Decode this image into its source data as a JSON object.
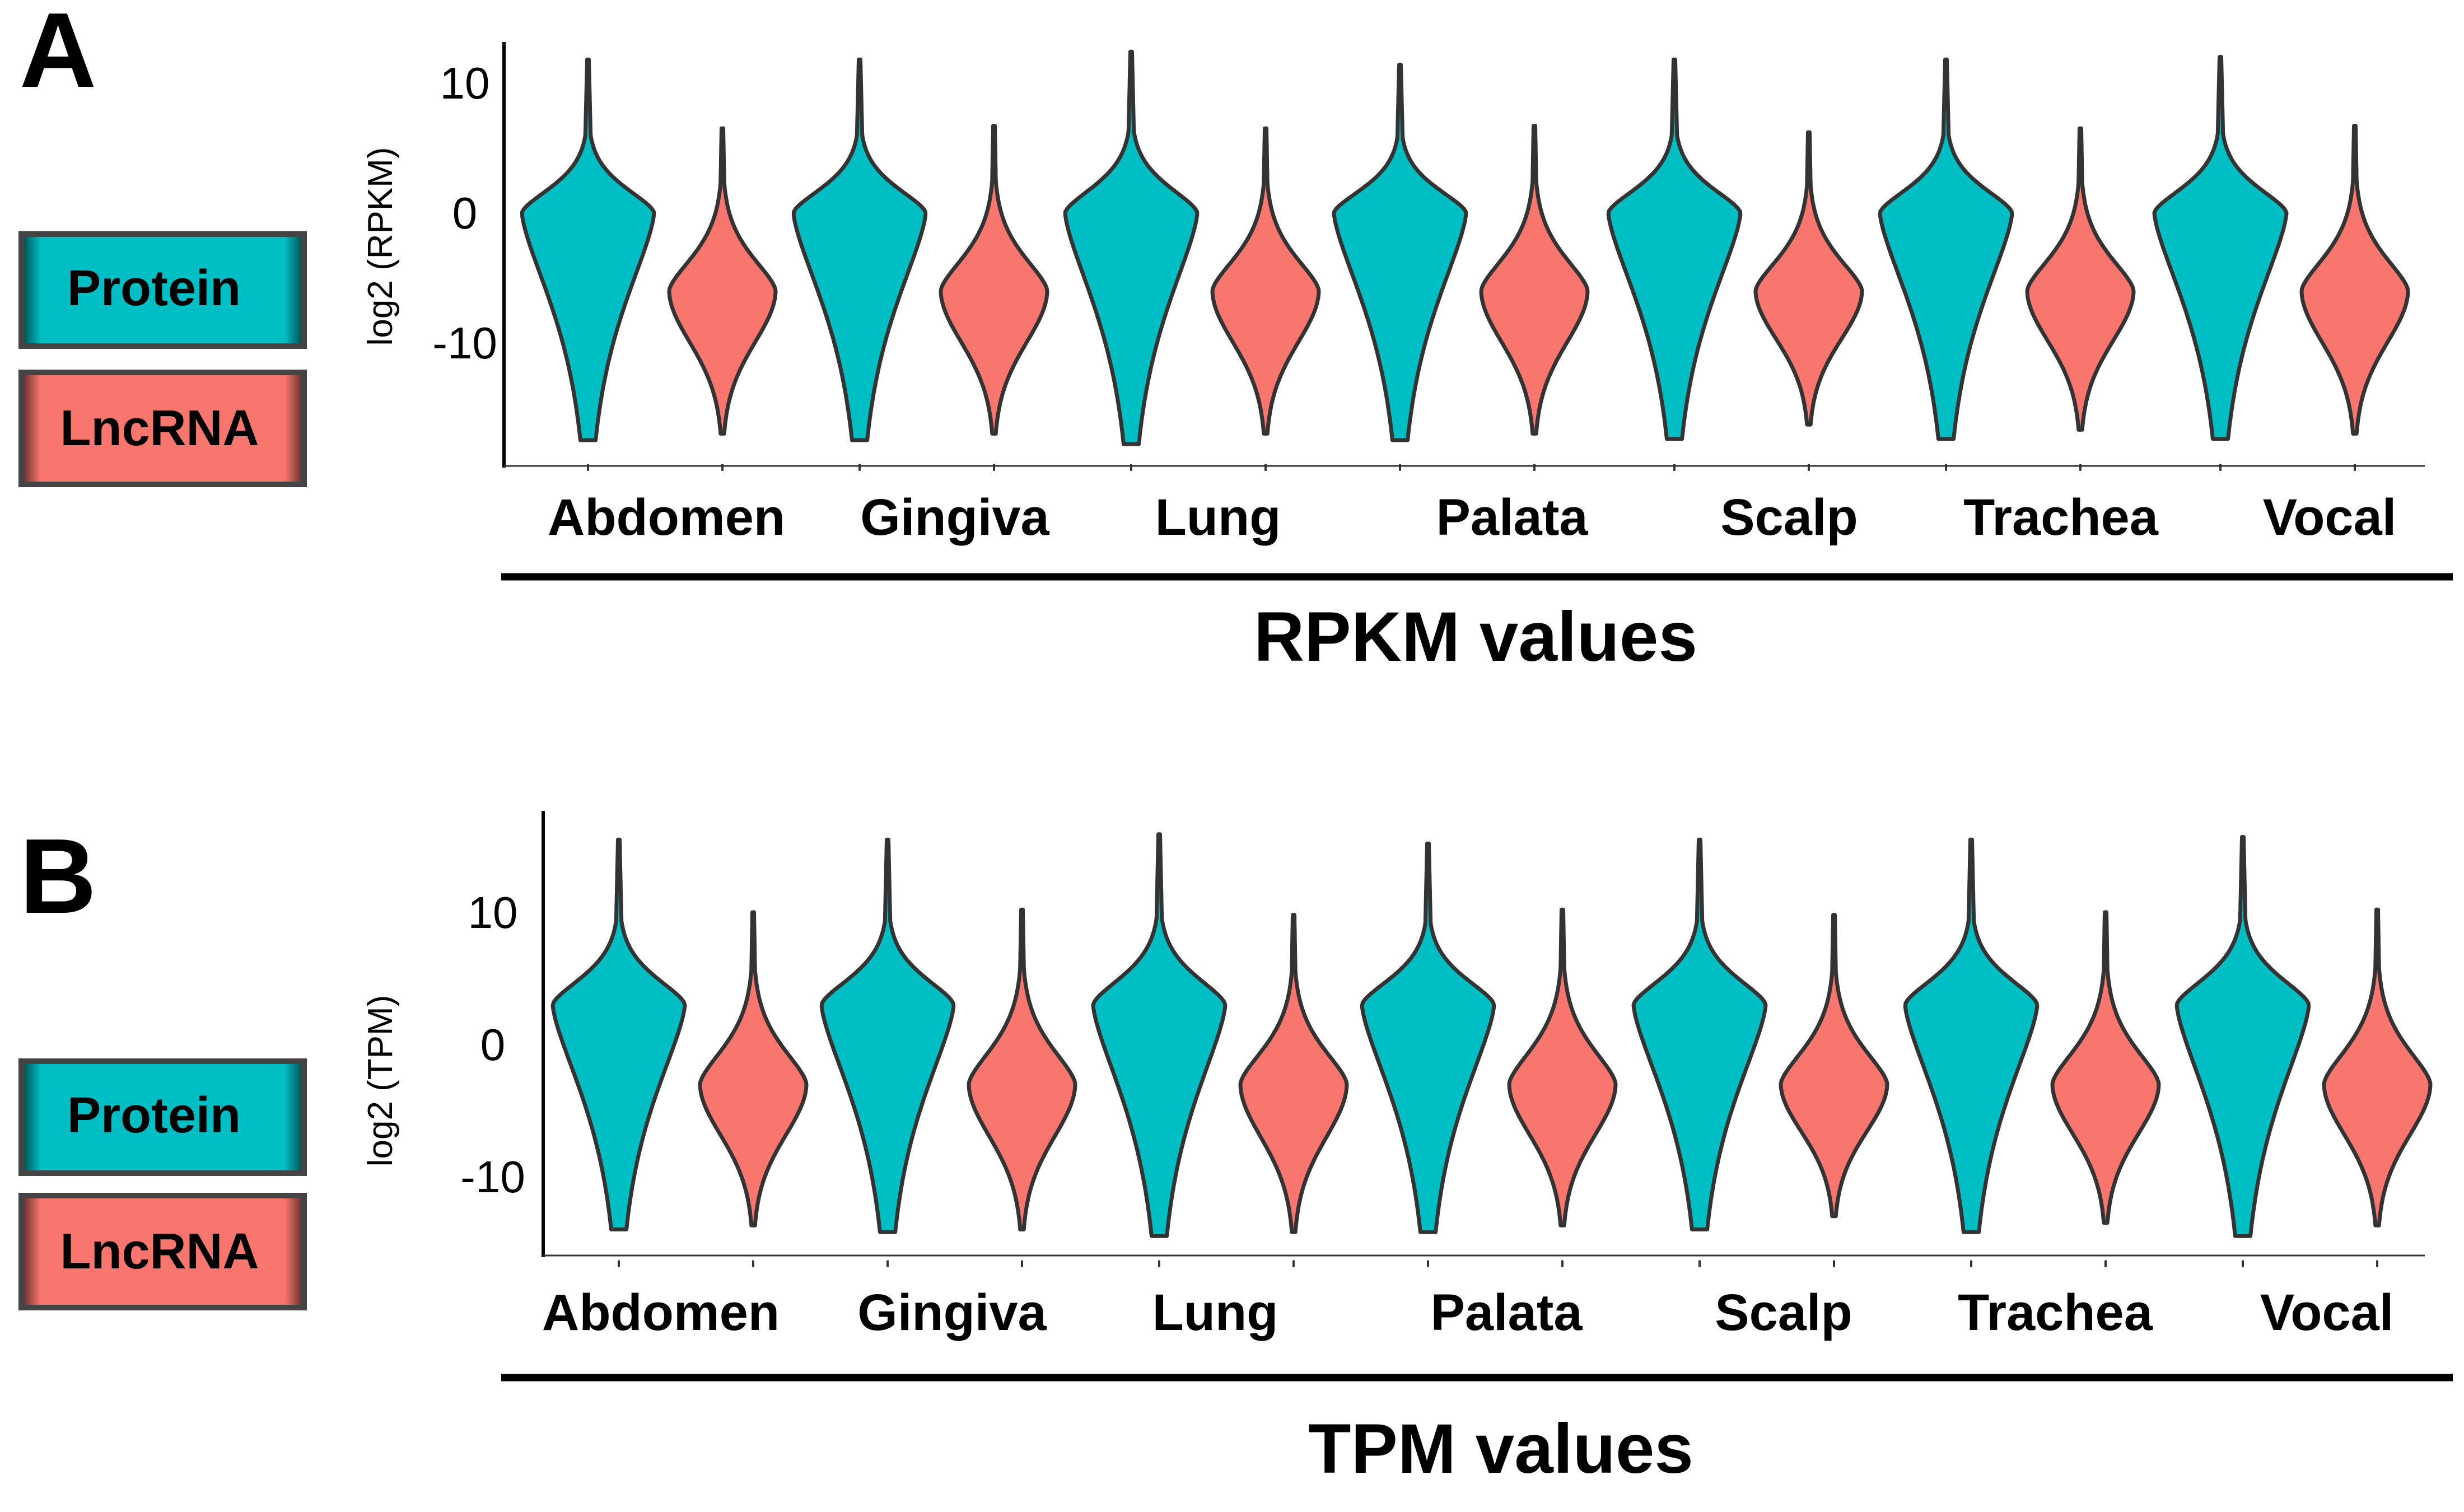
{
  "colors": {
    "protein": "#00BFC4",
    "lncrna": "#F8766D",
    "outline": "#333333"
  },
  "panels": [
    {
      "letter": "A",
      "section_label": "RPKM values",
      "legend": [
        {
          "label": "Protein",
          "color": "#00BFC4"
        },
        {
          "label": "LncRNA",
          "color": "#F8766D"
        }
      ]
    },
    {
      "letter": "B",
      "section_label": "TPM values",
      "legend": [
        {
          "label": "Protein",
          "color": "#00BFC4"
        },
        {
          "label": "LncRNA",
          "color": "#F8766D"
        }
      ]
    }
  ],
  "chart_data": [
    {
      "type": "violin",
      "ylabel": "log2 (RPKM)",
      "ylim": [
        -19,
        13
      ],
      "yticks": [
        "10",
        "0",
        "-10"
      ],
      "ytick_values": [
        10,
        0,
        -10
      ],
      "categories": [
        "Abdomen",
        "Gingiva",
        "Lung",
        "Palata",
        "Scalp",
        "Trachea",
        "Vocal"
      ],
      "series": [
        {
          "name": "Protein",
          "mode": 0,
          "min": [
            -17.5,
            -17.5,
            -17.8,
            -17.5,
            -17.4,
            -17.4,
            -17.4
          ],
          "max": [
            11.8,
            11.8,
            12.4,
            11.4,
            11.8,
            11.8,
            12.0
          ]
        },
        {
          "name": "LncRNA",
          "mode": -6,
          "min": [
            -17.0,
            -17.0,
            -17.0,
            -17.0,
            -16.3,
            -16.7,
            -17.0
          ],
          "max": [
            6.5,
            6.7,
            6.5,
            6.7,
            6.2,
            6.5,
            6.7
          ]
        }
      ],
      "legend": "left"
    },
    {
      "type": "violin",
      "ylabel": "log2 (TPM)",
      "ylim": [
        -16,
        17
      ],
      "yticks": [
        "10",
        "0",
        "-10"
      ],
      "ytick_values": [
        10,
        0,
        -10
      ],
      "categories": [
        "Abdomen",
        "Gingiva",
        "Lung",
        "Palata",
        "Scalp",
        "Trachea",
        "Vocal"
      ],
      "series": [
        {
          "name": "Protein",
          "mode": 3,
          "min": [
            -14.0,
            -14.2,
            -14.5,
            -14.2,
            -14.0,
            -14.2,
            -14.5
          ],
          "max": [
            15.5,
            15.5,
            15.9,
            15.2,
            15.5,
            15.5,
            15.7
          ]
        },
        {
          "name": "LncRNA",
          "mode": -3,
          "min": [
            -13.7,
            -14.0,
            -14.2,
            -13.7,
            -13.0,
            -13.5,
            -13.7
          ],
          "max": [
            10.0,
            10.2,
            9.8,
            10.2,
            9.8,
            10.0,
            10.2
          ]
        }
      ],
      "legend": "left"
    }
  ]
}
